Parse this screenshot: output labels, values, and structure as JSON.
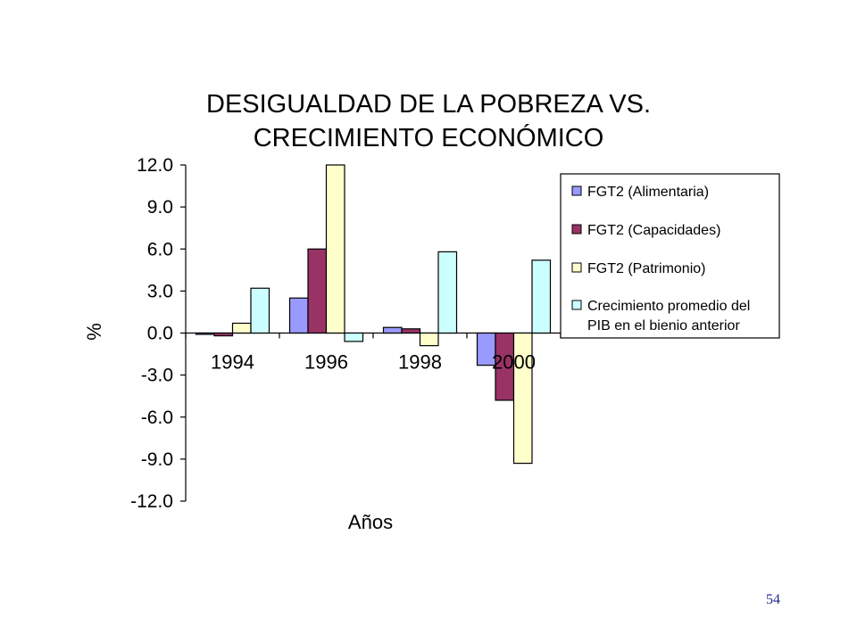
{
  "slide": {
    "page_number": "54"
  },
  "chart_data": {
    "type": "bar",
    "title_lines": [
      "DESIGUALDAD DE LA POBREZA VS.",
      "CRECIMIENTO ECONÓMICO"
    ],
    "xlabel": "Años",
    "ylabel": "%",
    "categories": [
      "1994",
      "1996",
      "1998",
      "2000"
    ],
    "ylim": [
      -12.0,
      12.0
    ],
    "yticks": [
      "12.0",
      "9.0",
      "6.0",
      "3.0",
      "0.0",
      "-3.0",
      "-6.0",
      "-9.0",
      "-12.0"
    ],
    "grid": false,
    "legend_position": "right",
    "series": [
      {
        "name": "FGT2 (Alimentaria)",
        "color": "#9999ff",
        "values": [
          0.0,
          2.5,
          0.4,
          -2.3
        ]
      },
      {
        "name": "FGT2 (Capacidades)",
        "color": "#993366",
        "values": [
          -0.2,
          6.0,
          0.3,
          -4.8
        ]
      },
      {
        "name": "FGT2 (Patrimonio)",
        "color": "#ffffcc",
        "values": [
          0.7,
          12.0,
          -0.9,
          -9.3
        ]
      },
      {
        "name": "Crecimiento promedio del PIB en el bienio anterior",
        "color": "#ccffff",
        "values": [
          3.2,
          -0.6,
          5.8,
          5.2
        ]
      }
    ],
    "legend_labels": [
      [
        "FGT2 (Alimentaria)"
      ],
      [
        "FGT2 (Capacidades)"
      ],
      [
        "FGT2 (Patrimonio)"
      ],
      [
        "Crecimiento promedio del",
        "PIB en el bienio anterior"
      ]
    ]
  }
}
